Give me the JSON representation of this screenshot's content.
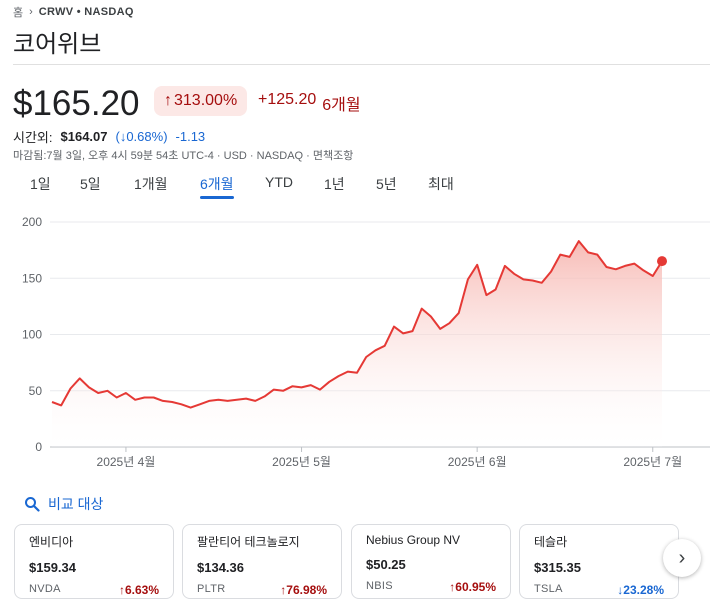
{
  "breadcrumb": {
    "home": "홈",
    "ticker": "CRWV • NASDAQ"
  },
  "company": {
    "name": "코어위브"
  },
  "quote": {
    "price": "$165.20",
    "change_pct": "313.00%",
    "change_abs": "+125.20",
    "period": "6개월",
    "afterhours_label": "시간외:",
    "afterhours_price": "$164.07",
    "afterhours_pct": "(↓0.68%)",
    "afterhours_abs": "-1.13",
    "meta": "마감됨:7월 3일, 오후 4시 59분 54초 UTC-4 · USD · NASDAQ · 면책조항"
  },
  "ranges": [
    "1일",
    "5일",
    "1개월",
    "6개월",
    "YTD",
    "1년",
    "5년",
    "최대"
  ],
  "active_range": "6개월",
  "chart_data": {
    "type": "area",
    "ylim": [
      0,
      200
    ],
    "yticks": [
      "200",
      "150",
      "100",
      "50",
      "0"
    ],
    "xticks": [
      "2025년 4월",
      "2025년 5월",
      "2025년 6월",
      "2025년 7월"
    ],
    "series": [
      {
        "values": [
          40,
          37,
          52,
          61,
          53,
          48,
          50,
          44,
          48,
          42,
          44,
          44,
          41,
          40,
          38,
          35,
          38,
          41,
          42,
          41,
          42,
          43,
          41,
          45,
          51,
          50,
          54,
          53,
          55,
          51,
          58,
          63,
          67,
          66,
          80,
          86,
          90,
          107,
          101,
          103,
          123,
          116,
          105,
          110,
          119,
          149,
          162,
          135,
          140,
          161,
          154,
          149,
          148,
          146,
          156,
          171,
          169,
          183,
          173,
          171,
          160,
          158,
          161,
          163,
          157,
          152,
          165.2
        ]
      }
    ],
    "colors": {
      "line": "#e53935",
      "fill_top": "#f6b4ae",
      "fill_bottom": "#ffffff"
    }
  },
  "compare": {
    "label": "비교 대상",
    "items": [
      {
        "name": "엔비디아",
        "price": "$159.34",
        "ticker": "NVDA",
        "change": "6.63%",
        "dir": "up"
      },
      {
        "name": "팔란티어 테크놀로지",
        "price": "$134.36",
        "ticker": "PLTR",
        "change": "76.98%",
        "dir": "up"
      },
      {
        "name": "Nebius Group NV",
        "price": "$50.25",
        "ticker": "NBIS",
        "change": "60.95%",
        "dir": "up"
      },
      {
        "name": "테슬라",
        "price": "$315.35",
        "ticker": "TSLA",
        "change": "23.28%",
        "dir": "down"
      }
    ]
  },
  "colors": {
    "up": "#a50e0e",
    "down": "#1967d2",
    "accent": "#1967d2"
  }
}
